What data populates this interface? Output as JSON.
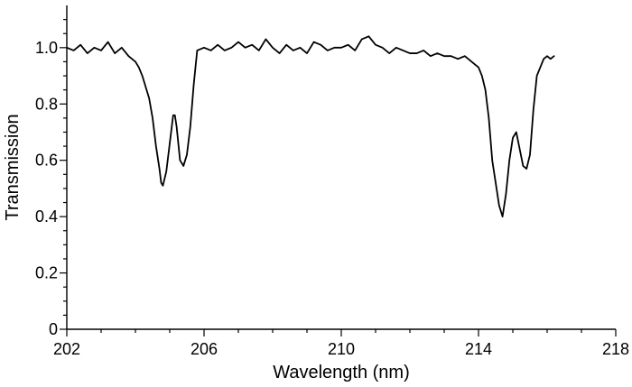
{
  "chart_data": {
    "type": "line",
    "title": "",
    "xlabel": "Wavelength (nm)",
    "ylabel": "Transmission",
    "xlim": [
      202,
      218
    ],
    "ylim": [
      0,
      1.15
    ],
    "xticks": [
      202,
      206,
      210,
      214,
      218
    ],
    "xtick_labels": [
      "202",
      "206",
      "210",
      "214",
      "218"
    ],
    "xminor_step": 1,
    "yticks": [
      0,
      0.2,
      0.4,
      0.6,
      0.8,
      1.0
    ],
    "ytick_labels": [
      "0",
      "0.2",
      "0.4",
      "0.6",
      "0.8",
      "1.0"
    ],
    "yminor_step": 0.05,
    "grid": false,
    "line_color": "#000000",
    "series": [
      {
        "x": [
          202.0,
          202.2,
          202.4,
          202.6,
          202.8,
          203.0,
          203.2,
          203.4,
          203.6,
          203.8,
          204.0,
          204.1,
          204.2,
          204.3,
          204.4,
          204.5,
          204.6,
          204.7,
          204.75,
          204.8,
          204.9,
          205.0,
          205.05,
          205.1,
          205.15,
          205.2,
          205.3,
          205.4,
          205.5,
          205.6,
          205.7,
          205.8,
          206.0,
          206.2,
          206.4,
          206.6,
          206.8,
          207.0,
          207.2,
          207.4,
          207.6,
          207.8,
          208.0,
          208.2,
          208.4,
          208.6,
          208.8,
          209.0,
          209.2,
          209.4,
          209.6,
          209.8,
          210.0,
          210.2,
          210.4,
          210.6,
          210.8,
          211.0,
          211.2,
          211.4,
          211.6,
          211.8,
          212.0,
          212.2,
          212.4,
          212.6,
          212.8,
          213.0,
          213.2,
          213.4,
          213.6,
          213.8,
          214.0,
          214.1,
          214.2,
          214.3,
          214.4,
          214.5,
          214.6,
          214.7,
          214.8,
          214.9,
          215.0,
          215.1,
          215.2,
          215.3,
          215.4,
          215.5,
          215.6,
          215.7,
          215.8,
          215.9,
          216.0,
          216.1,
          216.2
        ],
        "y": [
          1.0,
          0.99,
          1.01,
          0.98,
          1.0,
          0.99,
          1.02,
          0.98,
          1.0,
          0.97,
          0.95,
          0.93,
          0.9,
          0.86,
          0.82,
          0.75,
          0.65,
          0.57,
          0.52,
          0.51,
          0.56,
          0.66,
          0.71,
          0.76,
          0.76,
          0.72,
          0.6,
          0.58,
          0.62,
          0.72,
          0.87,
          0.99,
          1.0,
          0.99,
          1.01,
          0.99,
          1.0,
          1.02,
          1.0,
          1.01,
          0.99,
          1.03,
          1.0,
          0.98,
          1.01,
          0.99,
          1.0,
          0.98,
          1.02,
          1.01,
          0.99,
          1.0,
          1.0,
          1.01,
          0.99,
          1.03,
          1.04,
          1.01,
          1.0,
          0.98,
          1.0,
          0.99,
          0.98,
          0.98,
          0.99,
          0.97,
          0.98,
          0.97,
          0.97,
          0.96,
          0.97,
          0.95,
          0.93,
          0.9,
          0.85,
          0.75,
          0.6,
          0.52,
          0.44,
          0.4,
          0.48,
          0.6,
          0.68,
          0.7,
          0.64,
          0.58,
          0.57,
          0.62,
          0.78,
          0.9,
          0.93,
          0.96,
          0.97,
          0.96,
          0.97
        ]
      }
    ]
  }
}
